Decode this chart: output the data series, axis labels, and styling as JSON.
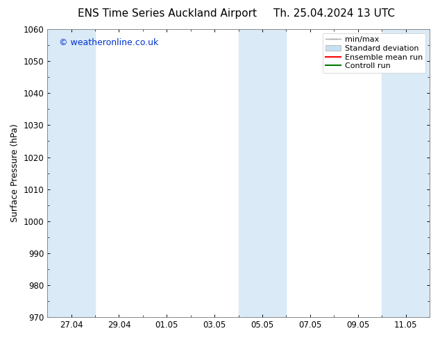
{
  "title_left": "ENS Time Series Auckland Airport",
  "title_right": "Th. 25.04.2024 13 UTC",
  "ylabel": "Surface Pressure (hPa)",
  "ylim": [
    970,
    1060
  ],
  "yticks": [
    970,
    980,
    990,
    1000,
    1010,
    1020,
    1030,
    1040,
    1050,
    1060
  ],
  "xtick_labels": [
    "27.04",
    "29.04",
    "01.05",
    "03.05",
    "05.05",
    "07.05",
    "09.05",
    "11.05"
  ],
  "xtick_positions": [
    1,
    3,
    5,
    7,
    9,
    11,
    13,
    15
  ],
  "xlim": [
    0,
    16
  ],
  "watermark": "© weatheronline.co.uk",
  "watermark_color": "#0033cc",
  "background_color": "#ffffff",
  "plot_bg_color": "#ffffff",
  "shaded_bands": [
    {
      "x_start": 0,
      "x_end": 2,
      "color": "#daeaf7"
    },
    {
      "x_start": 8,
      "x_end": 10,
      "color": "#daeaf7"
    },
    {
      "x_start": 14,
      "x_end": 16,
      "color": "#daeaf7"
    }
  ],
  "legend_items": [
    {
      "label": "min/max",
      "type": "errorbar",
      "color": "#999999"
    },
    {
      "label": "Standard deviation",
      "type": "band",
      "color": "#c8dff0"
    },
    {
      "label": "Ensemble mean run",
      "type": "line",
      "color": "#ff0000"
    },
    {
      "label": "Controll run",
      "type": "line",
      "color": "#007700"
    }
  ],
  "title_fontsize": 11,
  "axis_label_fontsize": 9,
  "tick_fontsize": 8.5,
  "legend_fontsize": 8,
  "watermark_fontsize": 9
}
